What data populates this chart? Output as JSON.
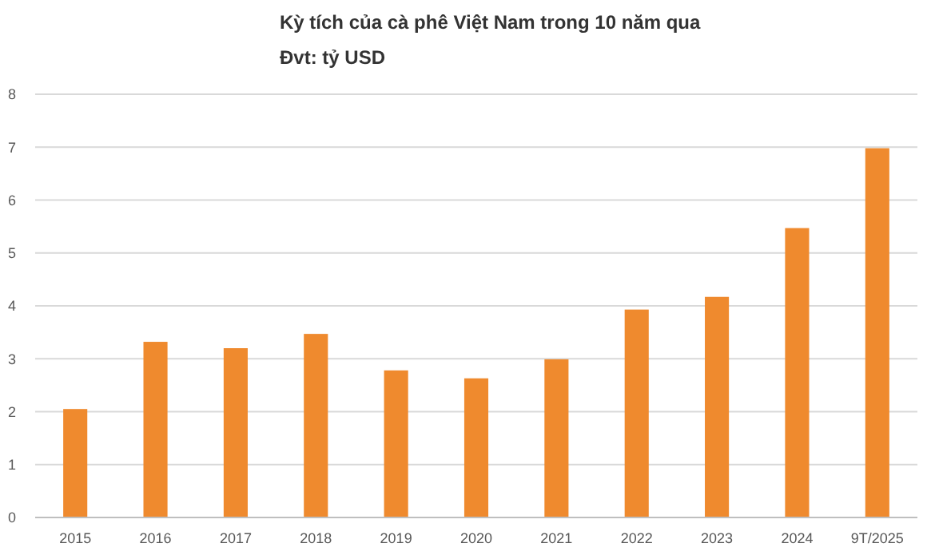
{
  "chart_data": {
    "type": "bar",
    "title": "Kỳ tích của cà phê Việt Nam trong 10 năm qua",
    "subtitle": "Đvt: tỷ USD",
    "categories": [
      "2015",
      "2016",
      "2017",
      "2018",
      "2019",
      "2020",
      "2021",
      "2022",
      "2023",
      "2024",
      "9T/2025"
    ],
    "values": [
      2.05,
      3.32,
      3.2,
      3.47,
      2.78,
      2.63,
      2.99,
      3.93,
      4.17,
      5.47,
      6.98
    ],
    "color": "#ef8a2e",
    "ylim": [
      0,
      8
    ],
    "yticks": [
      0,
      1,
      2,
      3,
      4,
      5,
      6,
      7,
      8
    ],
    "grid": "y"
  }
}
